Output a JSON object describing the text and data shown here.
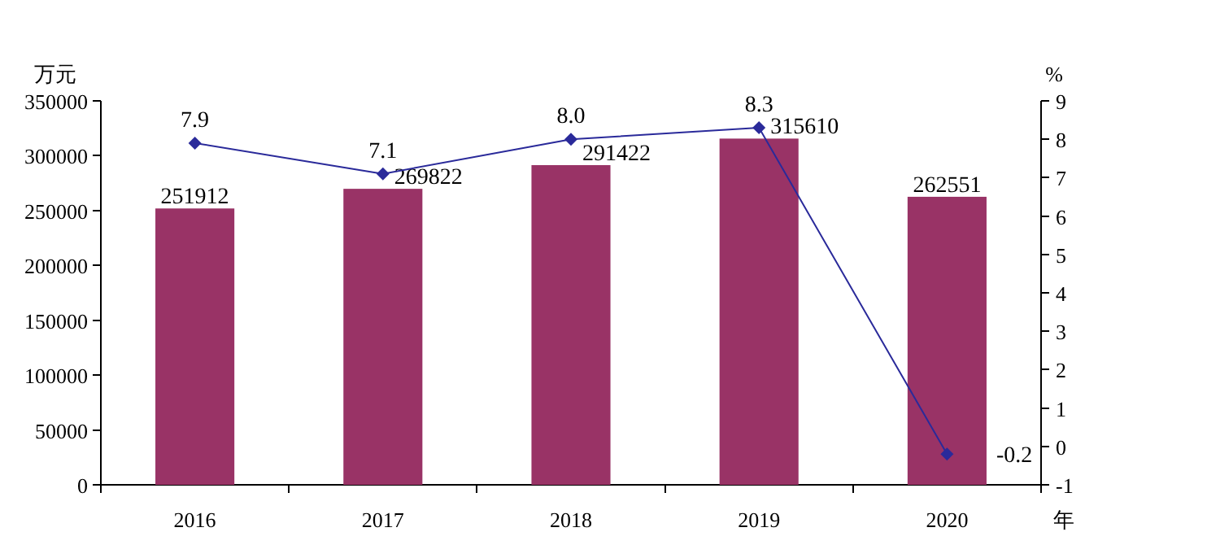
{
  "chart_data": {
    "type": "bar",
    "xlabel": "年",
    "ylabel": "万元",
    "y2label": "%",
    "categories": [
      "2016",
      "2017",
      "2018",
      "2019",
      "2020"
    ],
    "series": [
      {
        "color": "#993366",
        "values": [
          251912,
          269822,
          291422,
          315610,
          262551
        ]
      },
      {
        "type": "line",
        "axis": "y2",
        "color": "#2a2a9a",
        "marker": "diamond",
        "values": [
          7.9,
          7.1,
          8.0,
          8.3,
          -0.2
        ],
        "value_labels": [
          "7.9",
          "7.1",
          "8.0",
          "8.3",
          "-0.2"
        ]
      }
    ],
    "ylim": [
      0,
      350000
    ],
    "yticks": [
      0,
      50000,
      100000,
      150000,
      200000,
      250000,
      300000,
      350000
    ],
    "y2lim": [
      -1,
      9
    ],
    "y2ticks": [
      -1,
      0,
      1,
      2,
      3,
      4,
      5,
      6,
      7,
      8,
      9
    ],
    "data_labels": true,
    "grid": false
  }
}
